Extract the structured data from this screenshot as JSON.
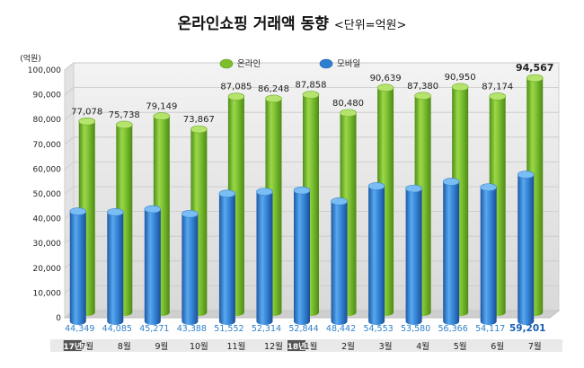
{
  "page": {
    "title": "온라인쇼핑 거래액 동향",
    "unit_note": "<단위=억원>"
  },
  "chart_data": {
    "type": "bar",
    "title": "온라인쇼핑 거래액 동향",
    "ylabel": "(억원)",
    "ylim": [
      0,
      100000
    ],
    "yticks": [
      "0",
      "10,000",
      "20,000",
      "30,000",
      "40,000",
      "50,000",
      "60,000",
      "70,000",
      "80,000",
      "90,000",
      "100,000"
    ],
    "categories": [
      "7월",
      "8월",
      "9월",
      "10월",
      "11월",
      "12월",
      "1월",
      "2월",
      "3월",
      "4월",
      "5월",
      "6월",
      "7월"
    ],
    "year_badges": [
      {
        "index": 0,
        "label": "17년"
      },
      {
        "index": 6,
        "label": "18년"
      }
    ],
    "series": [
      {
        "name": "온라인",
        "color": "#7cbf2a",
        "values": [
          77078,
          75738,
          79149,
          73867,
          87085,
          86248,
          87858,
          80480,
          90639,
          87380,
          90950,
          87174,
          94567
        ],
        "labels": [
          "77,078",
          "75,738",
          "79,149",
          "73,867",
          "87,085",
          "86,248",
          "87,858",
          "80,480",
          "90,639",
          "87,380",
          "90,950",
          "87,174",
          "94,567"
        ]
      },
      {
        "name": "모바일",
        "color": "#2f7fd1",
        "values": [
          44349,
          44085,
          45271,
          43388,
          51552,
          52314,
          52844,
          48442,
          54553,
          53580,
          56366,
          54117,
          59201
        ],
        "labels": [
          "44,349",
          "44,085",
          "45,271",
          "43,388",
          "51,552",
          "52,314",
          "52,844",
          "48,442",
          "54,553",
          "53,580",
          "56,366",
          "54,117",
          "59,201"
        ]
      }
    ],
    "grid": true,
    "legend": "top"
  }
}
